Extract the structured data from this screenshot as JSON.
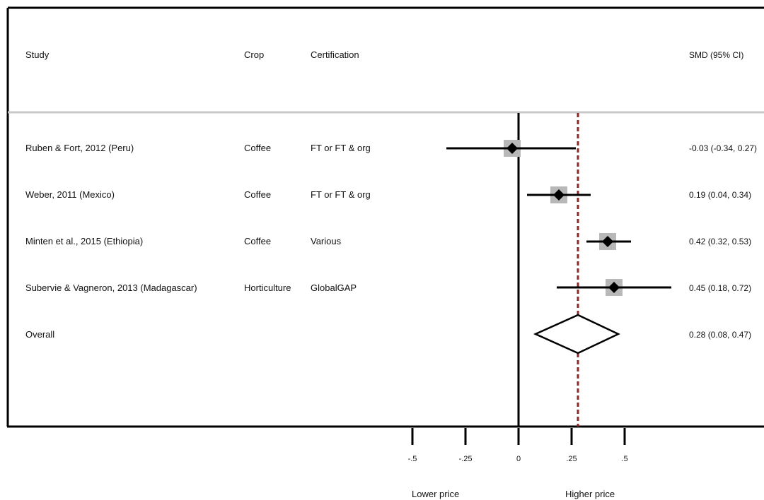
{
  "chart_data": {
    "type": "forest",
    "columns": {
      "study": "Study",
      "crop": "Crop",
      "certification": "Certification",
      "effect": "SMD (95% CI)"
    },
    "studies": [
      {
        "study": "Ruben & Fort, 2012 (Peru)",
        "crop": "Coffee",
        "certification": "FT or FT & org",
        "smd": -0.03,
        "lower": -0.34,
        "upper": 0.27,
        "ci_text": "-0.03 (-0.34, 0.27)"
      },
      {
        "study": "Weber, 2011 (Mexico)",
        "crop": "Coffee",
        "certification": "FT or FT & org",
        "smd": 0.19,
        "lower": 0.04,
        "upper": 0.34,
        "ci_text": "0.19 (0.04, 0.34)"
      },
      {
        "study": "Minten et al., 2015 (Ethiopia)",
        "crop": "Coffee",
        "certification": "Various",
        "smd": 0.42,
        "lower": 0.32,
        "upper": 0.53,
        "ci_text": "0.42 (0.32, 0.53)"
      },
      {
        "study": "Subervie & Vagneron, 2013 (Madagascar)",
        "crop": "Horticulture",
        "certification": "GlobalGAP",
        "smd": 0.45,
        "lower": 0.18,
        "upper": 0.72,
        "ci_text": "0.45 (0.18, 0.72)"
      }
    ],
    "overall": {
      "label": "Overall",
      "smd": 0.28,
      "lower": 0.08,
      "upper": 0.47,
      "ci_text": "0.28 (0.08, 0.47)"
    },
    "x_ticks": [
      {
        "value": -0.5,
        "label": "-.5"
      },
      {
        "value": -0.25,
        "label": "-.25"
      },
      {
        "value": 0,
        "label": "0"
      },
      {
        "value": 0.25,
        "label": ".25"
      },
      {
        "value": 0.5,
        "label": ".5"
      }
    ],
    "xlim": [
      -0.5,
      0.5
    ],
    "direction_labels": {
      "left": "Lower price",
      "right": "Higher price"
    },
    "colors": {
      "reference_line": "#8b2a2a",
      "weight_box": "#b8b8b8",
      "marker": "#000000",
      "separator": "#c8c8c8"
    }
  }
}
